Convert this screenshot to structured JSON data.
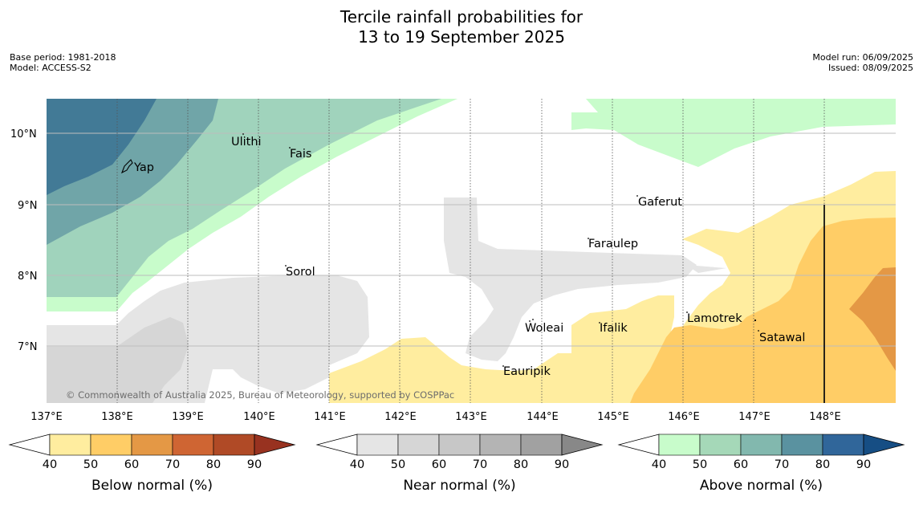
{
  "title": {
    "line1": "Tercile rainfall probabilities for",
    "line2": "13 to 19 September 2025"
  },
  "meta": {
    "base_period": "Base period: 1981-2018",
    "model": "Model: ACCESS-S2",
    "model_run": "Model run: 06/09/2025",
    "issued": "Issued: 08/09/2025"
  },
  "map": {
    "lat_labels": [
      "10°N",
      "9°N",
      "8°N",
      "7°N"
    ],
    "lon_labels": [
      "137°E",
      "138°E",
      "139°E",
      "140°E",
      "141°E",
      "142°E",
      "143°E",
      "144°E",
      "145°E",
      "146°E",
      "147°E",
      "148°E"
    ],
    "places": [
      "Yap",
      "Ulithi",
      "Fais",
      "Sorol",
      "Gaferut",
      "Faraulep",
      "Woleai",
      "Ifalik",
      "Lamotrek",
      "Satawal",
      "Eauripik"
    ],
    "copyright": "© Commonwealth of Australia 2025, Bureau of Meteorology, supported by COSPPac",
    "colors": {
      "above_40": "#c8fccb",
      "above_50": "#a0d3bc",
      "above_60": "#70a5a8",
      "above_70": "#427a96",
      "near_40": "#e5e5e5",
      "near_50": "#d6d6d6",
      "below_40": "#ffed9f",
      "below_50": "#ffcd66",
      "below_60": "#e49845"
    }
  },
  "colorbars": [
    {
      "title": "Below normal (%)",
      "ticks": [
        "40",
        "50",
        "60",
        "70",
        "80",
        "90"
      ],
      "colors": [
        "#ffed9f",
        "#ffcd66",
        "#e49845",
        "#cf6533",
        "#b04a26",
        "#983220"
      ]
    },
    {
      "title": "Near normal (%)",
      "ticks": [
        "40",
        "50",
        "60",
        "70",
        "80",
        "90"
      ],
      "colors": [
        "#e5e5e5",
        "#d6d6d6",
        "#c7c7c7",
        "#b4b4b4",
        "#a1a1a1",
        "#888888"
      ]
    },
    {
      "title": "Above normal (%)",
      "ticks": [
        "40",
        "50",
        "60",
        "70",
        "80",
        "90"
      ],
      "colors": [
        "#c8fccb",
        "#a5d8b8",
        "#82b8ae",
        "#5a92a0",
        "#30669a",
        "#164e84"
      ]
    }
  ]
}
